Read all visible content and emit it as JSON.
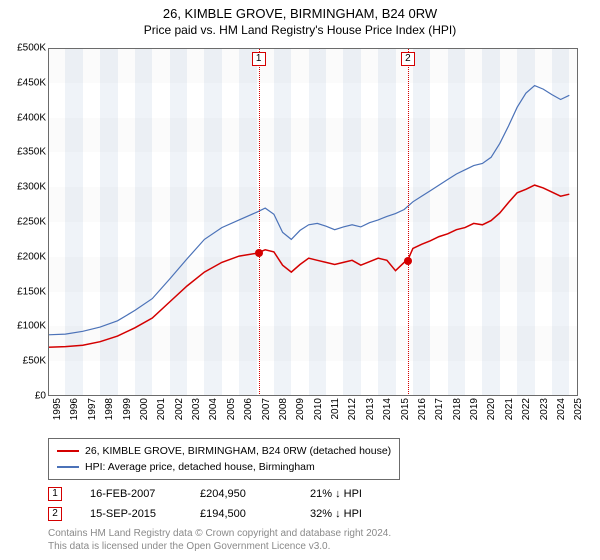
{
  "title": "26, KIMBLE GROVE, BIRMINGHAM, B24 0RW",
  "subtitle": "Price paid vs. HM Land Registry's House Price Index (HPI)",
  "chart": {
    "type": "line",
    "background_color": "#ffffff",
    "plot_border_color": "#6b6b6b",
    "band_light": "#ffffff",
    "band_dark": "#eff3f8",
    "hband_light": "#ffffff",
    "hband_dark": "#f7f7f7",
    "x": {
      "min": 1995,
      "max": 2025.5,
      "ticks": [
        1995,
        1996,
        1997,
        1998,
        1999,
        2000,
        2001,
        2002,
        2003,
        2004,
        2005,
        2006,
        2007,
        2008,
        2009,
        2010,
        2011,
        2012,
        2013,
        2014,
        2015,
        2016,
        2017,
        2018,
        2019,
        2020,
        2021,
        2022,
        2023,
        2024,
        2025
      ]
    },
    "y": {
      "min": 0,
      "max": 500000,
      "ticks": [
        0,
        50000,
        100000,
        150000,
        200000,
        250000,
        300000,
        350000,
        400000,
        450000,
        500000
      ],
      "tick_labels": [
        "£0",
        "£50K",
        "£100K",
        "£150K",
        "£200K",
        "£250K",
        "£300K",
        "£350K",
        "£400K",
        "£450K",
        "£500K"
      ]
    },
    "series": [
      {
        "name": "26, KIMBLE GROVE, BIRMINGHAM, B24 0RW (detached house)",
        "color": "#d40000",
        "line_width": 1.5,
        "data": [
          [
            1995,
            70000
          ],
          [
            1996,
            71000
          ],
          [
            1997,
            73000
          ],
          [
            1998,
            78000
          ],
          [
            1999,
            86000
          ],
          [
            2000,
            98000
          ],
          [
            2001,
            112000
          ],
          [
            2002,
            135000
          ],
          [
            2003,
            158000
          ],
          [
            2004,
            178000
          ],
          [
            2005,
            192000
          ],
          [
            2006,
            201000
          ],
          [
            2007,
            205000
          ],
          [
            2007.5,
            210000
          ],
          [
            2008,
            207000
          ],
          [
            2008.5,
            188000
          ],
          [
            2009,
            178000
          ],
          [
            2009.5,
            189000
          ],
          [
            2010,
            198000
          ],
          [
            2010.5,
            195000
          ],
          [
            2011,
            192000
          ],
          [
            2011.5,
            189000
          ],
          [
            2012,
            192000
          ],
          [
            2012.5,
            195000
          ],
          [
            2013,
            188000
          ],
          [
            2013.5,
            193000
          ],
          [
            2014,
            198000
          ],
          [
            2014.5,
            195000
          ],
          [
            2015,
            180000
          ],
          [
            2015.5,
            192000
          ],
          [
            2015.7,
            195000
          ],
          [
            2016,
            212000
          ],
          [
            2016.5,
            218000
          ],
          [
            2017,
            223000
          ],
          [
            2017.5,
            229000
          ],
          [
            2018,
            233000
          ],
          [
            2018.5,
            239000
          ],
          [
            2019,
            242000
          ],
          [
            2019.5,
            248000
          ],
          [
            2020,
            246000
          ],
          [
            2020.5,
            252000
          ],
          [
            2021,
            263000
          ],
          [
            2021.5,
            278000
          ],
          [
            2022,
            292000
          ],
          [
            2022.5,
            297000
          ],
          [
            2023,
            303000
          ],
          [
            2023.5,
            299000
          ],
          [
            2024,
            293000
          ],
          [
            2024.5,
            287000
          ],
          [
            2025,
            290000
          ]
        ]
      },
      {
        "name": "HPI: Average price, detached house, Birmingham",
        "color": "#4b72b8",
        "line_width": 1.2,
        "data": [
          [
            1995,
            88000
          ],
          [
            1996,
            89000
          ],
          [
            1997,
            93000
          ],
          [
            1998,
            99000
          ],
          [
            1999,
            108000
          ],
          [
            2000,
            123000
          ],
          [
            2001,
            140000
          ],
          [
            2002,
            168000
          ],
          [
            2003,
            197000
          ],
          [
            2004,
            225000
          ],
          [
            2005,
            242000
          ],
          [
            2006,
            253000
          ],
          [
            2007,
            264000
          ],
          [
            2007.5,
            270000
          ],
          [
            2008,
            261000
          ],
          [
            2008.5,
            235000
          ],
          [
            2009,
            225000
          ],
          [
            2009.5,
            238000
          ],
          [
            2010,
            246000
          ],
          [
            2010.5,
            248000
          ],
          [
            2011,
            244000
          ],
          [
            2011.5,
            239000
          ],
          [
            2012,
            243000
          ],
          [
            2012.5,
            246000
          ],
          [
            2013,
            243000
          ],
          [
            2013.5,
            249000
          ],
          [
            2014,
            253000
          ],
          [
            2014.5,
            258000
          ],
          [
            2015,
            262000
          ],
          [
            2015.5,
            268000
          ],
          [
            2016,
            279000
          ],
          [
            2016.5,
            287000
          ],
          [
            2017,
            295000
          ],
          [
            2017.5,
            303000
          ],
          [
            2018,
            311000
          ],
          [
            2018.5,
            319000
          ],
          [
            2019,
            325000
          ],
          [
            2019.5,
            331000
          ],
          [
            2020,
            334000
          ],
          [
            2020.5,
            343000
          ],
          [
            2021,
            363000
          ],
          [
            2021.5,
            388000
          ],
          [
            2022,
            415000
          ],
          [
            2022.5,
            435000
          ],
          [
            2023,
            446000
          ],
          [
            2023.5,
            441000
          ],
          [
            2024,
            433000
          ],
          [
            2024.5,
            426000
          ],
          [
            2025,
            432000
          ]
        ]
      }
    ],
    "sale_markers": [
      {
        "label": "1",
        "year": 2007.125,
        "price": 204950,
        "color": "#d40000"
      },
      {
        "label": "2",
        "year": 2015.71,
        "price": 194500,
        "color": "#d40000"
      }
    ]
  },
  "legend": {
    "items": [
      {
        "color": "#d40000",
        "label": "26, KIMBLE GROVE, BIRMINGHAM, B24 0RW (detached house)"
      },
      {
        "color": "#4b72b8",
        "label": "HPI: Average price, detached house, Birmingham"
      }
    ]
  },
  "annotations": [
    {
      "num": "1",
      "color": "#d40000",
      "date": "16-FEB-2007",
      "price": "£204,950",
      "delta": "21% ↓ HPI"
    },
    {
      "num": "2",
      "color": "#d40000",
      "date": "15-SEP-2015",
      "price": "£194,500",
      "delta": "32% ↓ HPI"
    }
  ],
  "footer": {
    "line1": "Contains HM Land Registry data © Crown copyright and database right 2024.",
    "line2": "This data is licensed under the Open Government Licence v3.0."
  }
}
